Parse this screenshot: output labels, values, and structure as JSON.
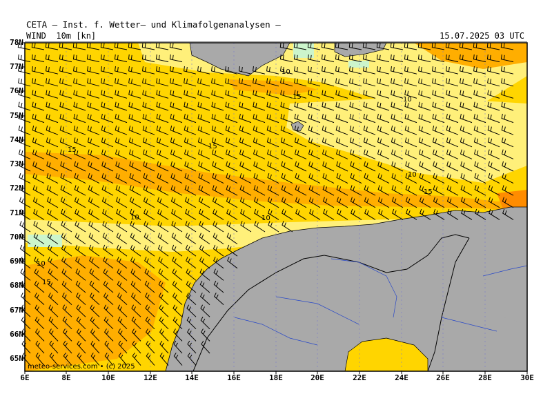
{
  "header": {
    "title": "CETA — Inst. f. Wetter— und Klimafolgenanalysen —",
    "variable": "WIND  10m [kn]",
    "valid_time": "15.07.2025 03 UTC"
  },
  "axes": {
    "lat_labels": [
      "78N",
      "77N",
      "76N",
      "75N",
      "74N",
      "73N",
      "72N",
      "71N",
      "70N",
      "69N",
      "68N",
      "67N",
      "66N",
      "65N"
    ],
    "lon_labels": [
      "6E",
      "8E",
      "10E",
      "12E",
      "14E",
      "16E",
      "18E",
      "20E",
      "22E",
      "24E",
      "26E",
      "28E",
      "30E"
    ]
  },
  "map_extent": {
    "lon_min": 6,
    "lon_max": 30,
    "lat_min": 64.5,
    "lat_max": 78
  },
  "contour_labels": [
    "10",
    "15",
    "15",
    "10",
    "15",
    "10",
    "10",
    "10",
    "15",
    "10",
    "15",
    "10"
  ],
  "credit": "meteo-services.com • (c) 2025",
  "legend_colors": {
    "lt5": "#ffffff",
    "5-10": "#fff07a",
    "10-15": "#ffd500",
    "15-20": "#ffae00",
    "20-25": "#ff8c00",
    "calm_green": "#ccf5cc",
    "land": "#a9a9a9"
  }
}
